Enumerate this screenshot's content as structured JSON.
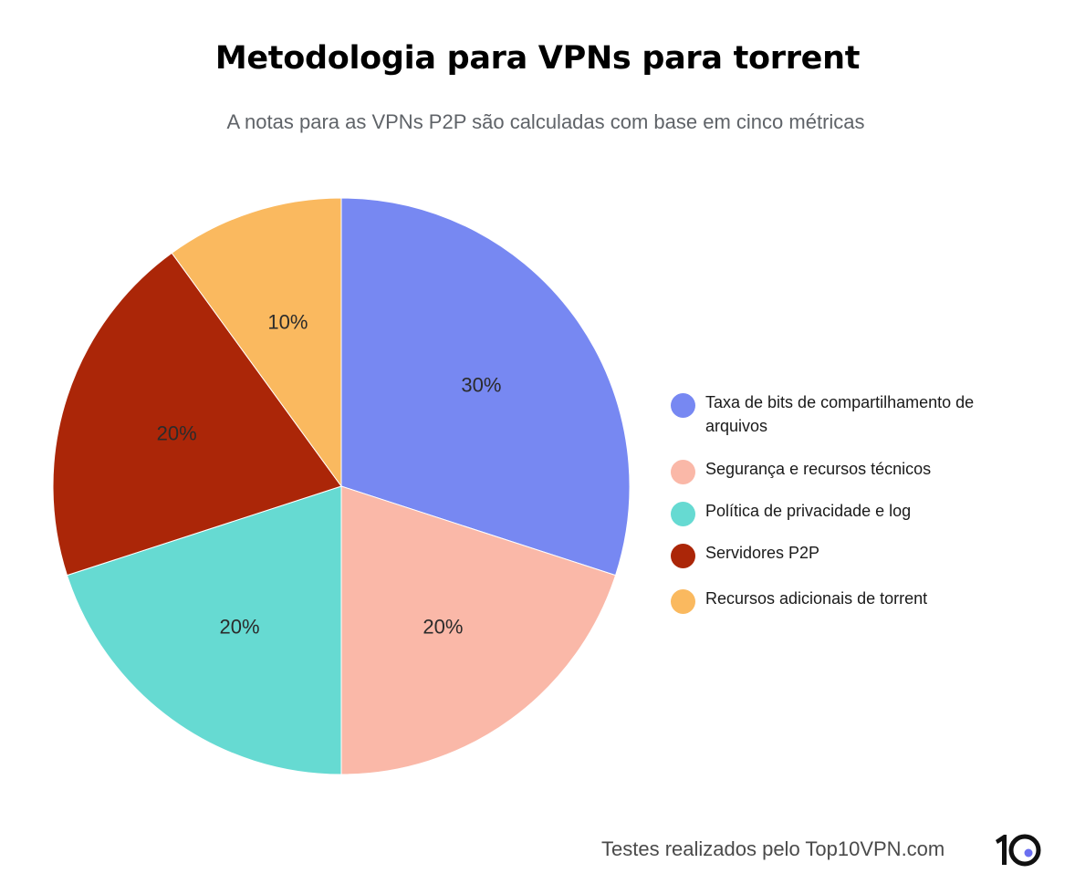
{
  "header": {
    "title": "Metodologia para VPNs para torrent",
    "subtitle": "A notas para as VPNs P2P são calculadas com base em cinco métricas"
  },
  "chart_data": {
    "type": "pie",
    "title": "Metodologia para VPNs para torrent",
    "subtitle": "A notas para as VPNs P2P são calculadas com base em cinco métricas",
    "categories": [
      "Taxa de bits de compartilhamento de arquivos",
      "Segurança e recursos técnicos",
      "Política de privacidade e log",
      "Servidores P2P",
      "Recursos adicionais de torrent"
    ],
    "values": [
      30,
      20,
      20,
      20,
      10
    ],
    "labels": [
      "30%",
      "20%",
      "20%",
      "20%",
      "10%"
    ],
    "colors": [
      "#7788f2",
      "#fab8a8",
      "#66dad2",
      "#ab2608",
      "#fab95f"
    ],
    "start_angle": "12 o'clock",
    "direction": "clockwise",
    "legend_position": "right"
  },
  "legend": {
    "items": [
      {
        "label": "Taxa de bits de compartilhamento de arquivos",
        "color": "#7788f2"
      },
      {
        "label": "Segurança e recursos técnicos",
        "color": "#fab8a8"
      },
      {
        "label": "Política de privacidade e log",
        "color": "#66dad2"
      },
      {
        "label": "Servidores P2P",
        "color": "#ab2608"
      },
      {
        "label": "Recursos adicionais de torrent",
        "color": "#fab95f"
      }
    ]
  },
  "footer": {
    "credit": "Testes realizados pelo Top10VPN.com",
    "logo_text": "10",
    "logo_accent": "#6b6ff0"
  }
}
